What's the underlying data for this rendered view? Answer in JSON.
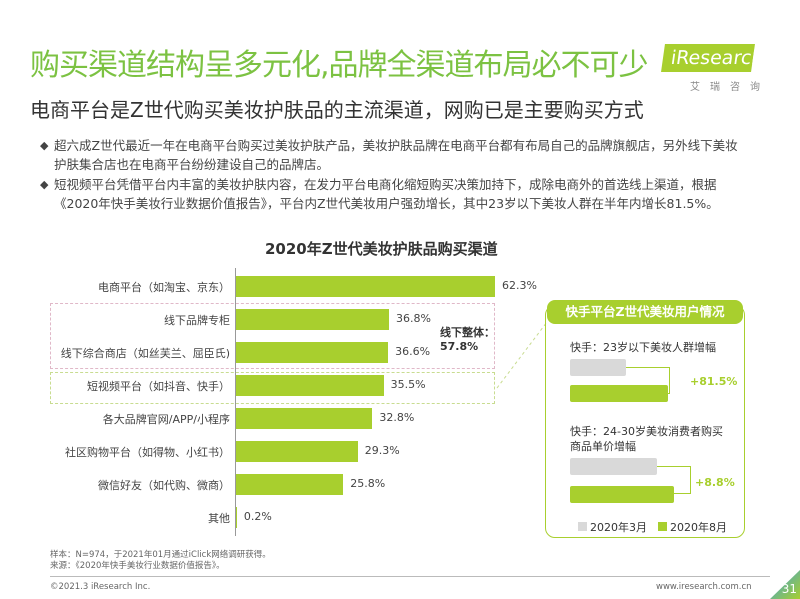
{
  "header": {
    "title": "购买渠道结构呈多元化,品牌全渠道布局必不可少",
    "logo": "iResearch",
    "logo_sub": "艾瑞咨询",
    "subtitle": "电商平台是Z世代购买美妆护肤品的主流渠道，网购已是主要购买方式"
  },
  "bullets": [
    "超六成Z世代最近一年在电商平台购买过美妆护肤产品，美妆护肤品牌在电商平台都有布局自己的品牌旗舰店，另外线下美妆护肤集合店也在电商平台纷纷建设自己的品牌店。",
    "短视频平台凭借平台内丰富的美妆护肤内容，在发力平台电商化缩短购买决策加持下，成除电商外的首选线上渠道，根据《2020年快手美妆行业数据价值报告》，平台内Z世代美妆用户强劲增长，其中23岁以下美妆人群在半年内增长81.5%。"
  ],
  "chart_data": [
    {
      "type": "bar",
      "orientation": "horizontal",
      "title": "2020年Z世代美妆护肤品购买渠道",
      "categories": [
        "电商平台（如淘宝、京东）",
        "线下品牌专柜",
        "线下综合商店（如丝芙兰、屈臣氏)",
        "短视频平台（如抖音、快手）",
        "各大品牌官网/APP/小程序",
        "社区购物平台（如得物、小红书）",
        "微信好友（如代购、微商）",
        "其他"
      ],
      "values": [
        62.3,
        36.8,
        36.6,
        35.5,
        32.8,
        29.3,
        25.8,
        0.2
      ],
      "value_labels": [
        "62.3%",
        "36.8%",
        "36.6%",
        "35.5%",
        "32.8%",
        "29.3%",
        "25.8%",
        "0.2%"
      ],
      "annotation": {
        "label": "线下整体：",
        "value": "57.8%"
      },
      "color": "#a8cf2e",
      "xlim": [
        0,
        62.3
      ]
    },
    {
      "type": "bar",
      "title": "快手平台Z世代美妆用户情况",
      "groups": [
        {
          "label": "快手：23岁以下美妆人群增幅",
          "growth": "+81.5%"
        },
        {
          "label": "快手：24-30岁美妆消费者购买商品单价增幅",
          "growth": "+8.8%"
        }
      ],
      "series": [
        {
          "name": "2020年3月",
          "color": "#d9d9d9"
        },
        {
          "name": "2020年8月",
          "color": "#a8cf2e"
        }
      ]
    }
  ],
  "footer": {
    "note1": "样本：N=974，于2021年01月通过iClick网络调研获得。",
    "note2": "来源：《2020年快手美妆行业数据价值报告》。",
    "copyright": "©2021.3 iResearch Inc.",
    "site": "www.iresearch.com.cn",
    "page": "31"
  }
}
